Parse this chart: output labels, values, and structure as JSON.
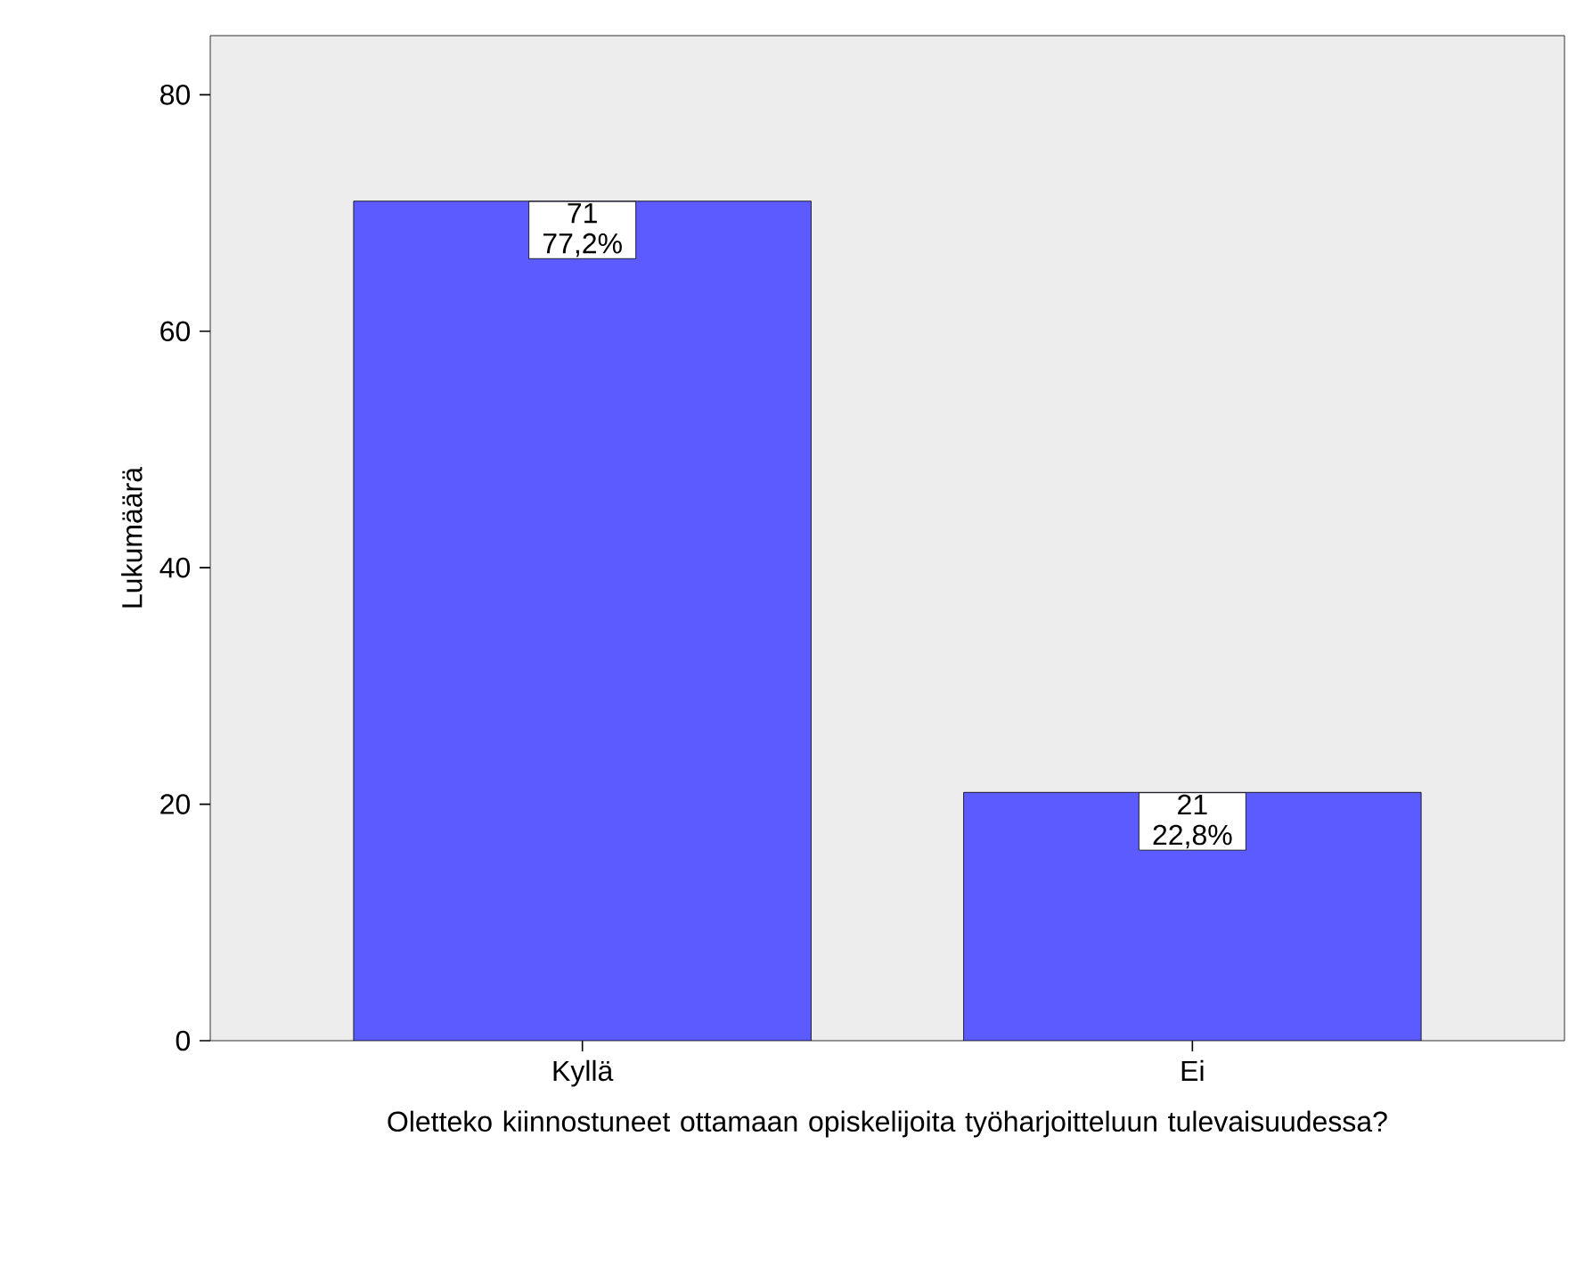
{
  "chart_data": {
    "type": "bar",
    "categories": [
      "Kyllä",
      "Ei"
    ],
    "values": [
      71,
      21
    ],
    "value_labels": [
      "71 77,2%",
      "21 22,8%"
    ],
    "color": "#5b5bff",
    "xlabel": "Oletteko kiinnostuneet ottamaan opiskelijoita työharjoitteluun tulevaisuudessa?",
    "ylabel": "Lukumäärä",
    "ylim": [
      0,
      85
    ],
    "yticks": [
      0,
      20,
      40,
      60,
      80
    ],
    "grid": false
  }
}
